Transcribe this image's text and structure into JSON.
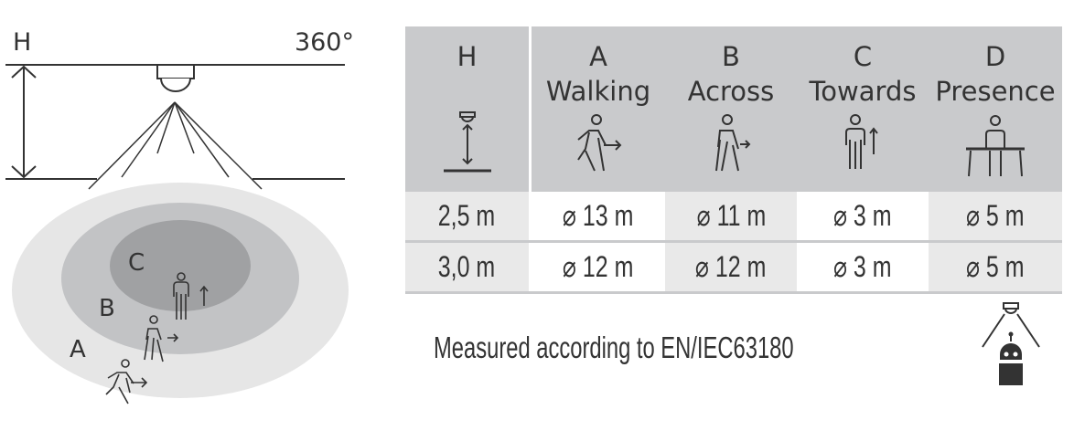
{
  "diagram": {
    "height_label": "H",
    "angle_label": "360°",
    "zone_labels": [
      "A",
      "B",
      "C"
    ],
    "colors": {
      "zone_a": "#e6e6e6",
      "zone_b": "#c2c3c5",
      "zone_c": "#a0a1a3",
      "line": "#333333"
    }
  },
  "table": {
    "header": {
      "height": {
        "letter": "H",
        "icon": "sensor-height-icon"
      },
      "columns": [
        {
          "letter": "A",
          "label": "Walking",
          "icon": "walking-person-icon"
        },
        {
          "letter": "B",
          "label": "Across",
          "icon": "person-across-icon"
        },
        {
          "letter": "C",
          "label": "Towards",
          "icon": "person-towards-icon"
        },
        {
          "letter": "D",
          "label": "Presence",
          "icon": "person-at-desk-icon"
        }
      ]
    },
    "rows": [
      {
        "height": "2,5 m",
        "values": [
          "⌀ 13 m",
          "⌀ 11 m",
          "⌀ 3 m",
          "⌀ 5 m"
        ]
      },
      {
        "height": "3,0 m",
        "values": [
          "⌀ 12 m",
          "⌀ 12 m",
          "⌀ 3 m",
          "⌀ 5 m"
        ]
      }
    ],
    "colors": {
      "header_bg": "#c9cacc",
      "shaded_cell": "#e9e9e9",
      "white_cell": "#ffffff"
    }
  },
  "note": "Measured according to EN/IEC63180",
  "standard_icon": "ceiling-sensor-robot-icon"
}
